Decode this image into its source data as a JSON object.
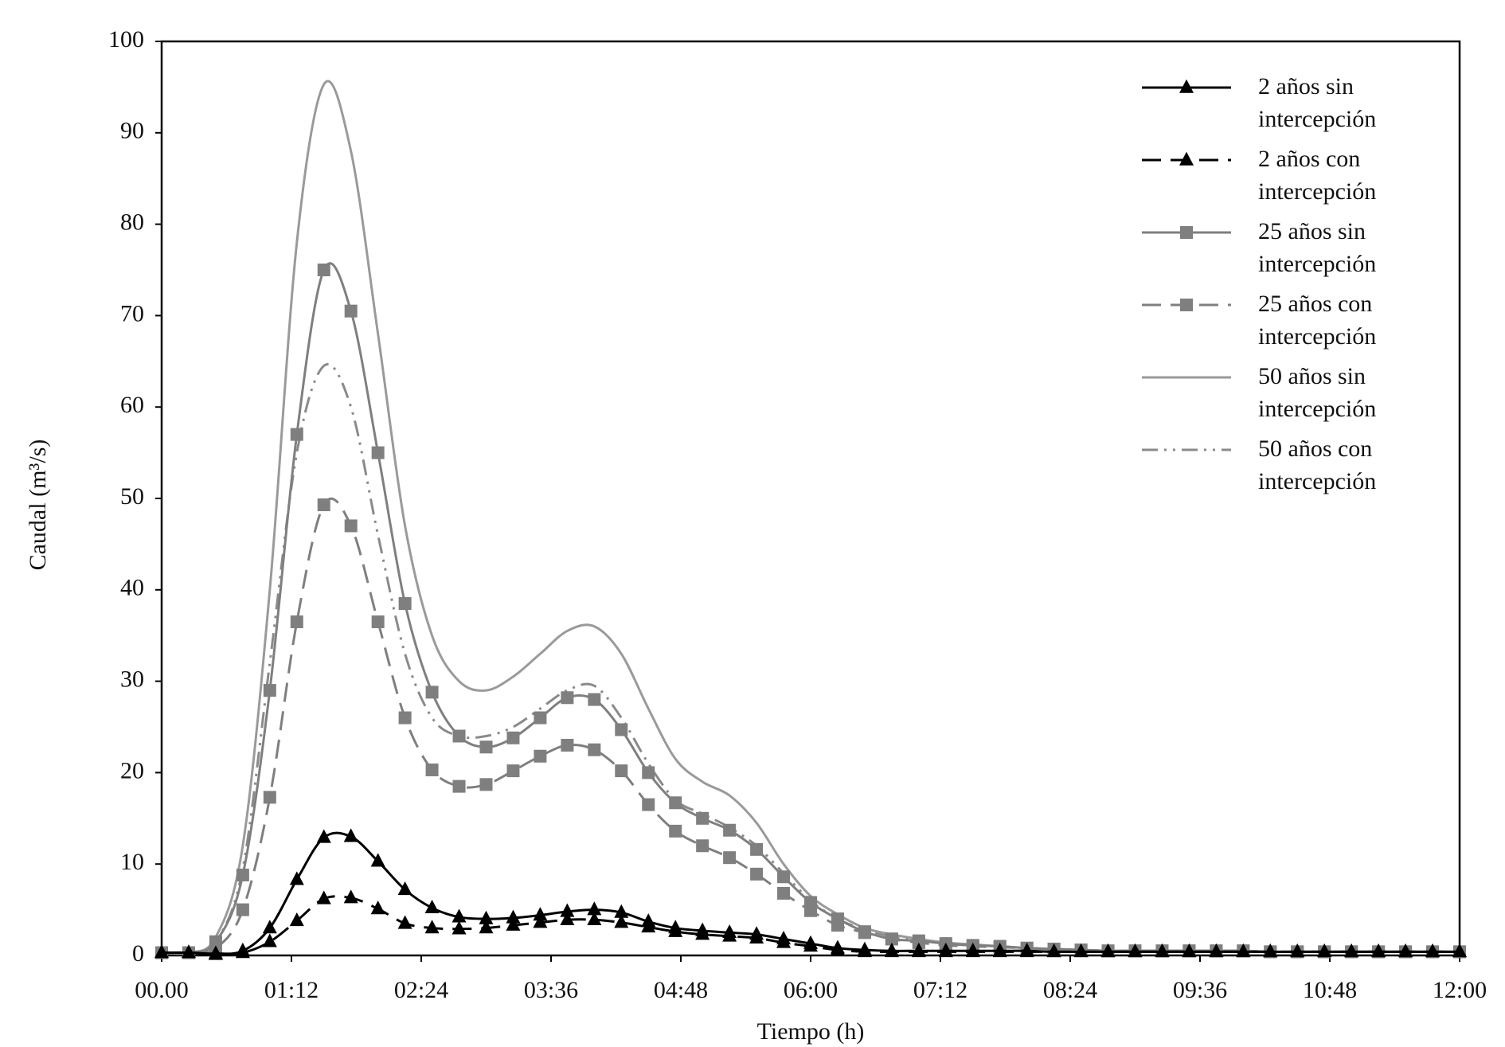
{
  "chart_data": {
    "type": "line",
    "x_label": "Tiempo (h)",
    "y_label": "Caudal (m³/s)",
    "x": [
      0,
      0.25,
      0.5,
      0.75,
      1,
      1.25,
      1.5,
      1.75,
      2,
      2.25,
      2.5,
      2.75,
      3,
      3.25,
      3.5,
      3.75,
      4,
      4.25,
      4.5,
      4.75,
      5,
      5.25,
      5.5,
      5.75,
      6,
      6.25,
      6.5,
      6.75,
      7,
      7.25,
      7.5,
      7.75,
      8,
      8.25,
      8.5,
      8.75,
      9,
      9.25,
      9.5,
      9.75,
      10,
      10.25,
      10.5,
      10.75,
      11,
      11.25,
      11.5,
      11.75,
      12
    ],
    "xlim": [
      0,
      12
    ],
    "xticks": [
      {
        "value": 0,
        "label": "00.00"
      },
      {
        "value": 1.2,
        "label": "01:12"
      },
      {
        "value": 2.4,
        "label": "02:24"
      },
      {
        "value": 3.6,
        "label": "03:36"
      },
      {
        "value": 4.8,
        "label": "04:48"
      },
      {
        "value": 6,
        "label": "06:00"
      },
      {
        "value": 7.2,
        "label": "07:12"
      },
      {
        "value": 8.4,
        "label": "08:24"
      },
      {
        "value": 9.6,
        "label": "09:36"
      },
      {
        "value": 10.8,
        "label": "10:48"
      },
      {
        "value": 12,
        "label": "12:00"
      }
    ],
    "ylim": [
      0,
      100
    ],
    "yticks": [
      0,
      10,
      20,
      30,
      40,
      50,
      60,
      70,
      80,
      90,
      100
    ],
    "grid": false,
    "legend": "upper right",
    "series": [
      {
        "name": "2 años sin intercepción",
        "color": "#000000",
        "line_style": "solid",
        "marker": "triangle",
        "values": [
          0.3,
          0.3,
          0.2,
          0.5,
          3,
          8.3,
          12.9,
          13,
          10.3,
          7.2,
          5.2,
          4.2,
          4,
          4.1,
          4.4,
          4.8,
          5,
          4.7,
          3.7,
          3,
          2.7,
          2.5,
          2.3,
          1.8,
          1.3,
          0.8,
          0.6,
          0.5,
          0.5,
          0.5,
          0.5,
          0.5,
          0.5,
          0.4,
          0.4,
          0.4,
          0.4,
          0.4,
          0.4,
          0.4,
          0.4,
          0.4,
          0.4,
          0.4,
          0.4,
          0.4,
          0.4,
          0.4,
          0.4
        ]
      },
      {
        "name": "2 años con intercepción",
        "color": "#000000",
        "line_style": "dashed",
        "marker": "triangle",
        "values": [
          0.3,
          0.3,
          0.1,
          0.3,
          1.5,
          3.8,
          6.2,
          6.3,
          5.1,
          3.5,
          3,
          2.9,
          3,
          3.3,
          3.6,
          3.9,
          3.9,
          3.6,
          3.1,
          2.6,
          2.3,
          2.1,
          1.9,
          1.4,
          1.0,
          0.6,
          0.4,
          0.4,
          0.4,
          0.4,
          0.4,
          0.4,
          0.4,
          0.4,
          0.4,
          0.4,
          0.4,
          0.4,
          0.4,
          0.4,
          0.4,
          0.4,
          0.4,
          0.4,
          0.4,
          0.4,
          0.4,
          0.4,
          0.4
        ]
      },
      {
        "name": "25 años sin intercepción",
        "color": "#7f7f7f",
        "line_style": "solid",
        "marker": "square",
        "values": [
          0.3,
          0.3,
          1.5,
          8.8,
          29,
          57,
          75,
          70.5,
          55,
          38.5,
          28.8,
          24,
          22.8,
          23.8,
          26,
          28.2,
          28,
          24.7,
          20,
          16.7,
          15,
          13.7,
          11.6,
          8.6,
          5.8,
          4,
          2.6,
          1.8,
          1.6,
          1.3,
          1.1,
          1.0,
          0.8,
          0.7,
          0.6,
          0.5,
          0.5,
          0.5,
          0.5,
          0.5,
          0.5,
          0.4,
          0.4,
          0.4,
          0.4,
          0.4,
          0.4,
          0.4,
          0.4
        ]
      },
      {
        "name": "25 años con intercepción",
        "color": "#7f7f7f",
        "line_style": "dashed",
        "marker": "square",
        "values": [
          0.3,
          0.3,
          0.8,
          5,
          17.3,
          36.5,
          49.3,
          47,
          36.5,
          26,
          20.3,
          18.5,
          18.7,
          20.2,
          21.8,
          23,
          22.5,
          20.2,
          16.5,
          13.6,
          12,
          10.7,
          8.9,
          6.8,
          4.9,
          3.3,
          2.5,
          1.8,
          1.4,
          1.1,
          1.0,
          0.9,
          0.8,
          0.7,
          0.6,
          0.5,
          0.5,
          0.5,
          0.5,
          0.5,
          0.5,
          0.4,
          0.4,
          0.4,
          0.4,
          0.4,
          0.4,
          0.4,
          0.4
        ]
      },
      {
        "name": "50 años sin intercepción",
        "color": "#9a9a9a",
        "line_style": "solid",
        "marker": "none",
        "values": [
          0.3,
          0.3,
          2,
          12,
          40,
          78,
          95.3,
          88,
          68,
          47,
          35,
          30,
          29,
          30.5,
          33,
          35.5,
          36,
          33,
          27,
          21.5,
          19,
          17.5,
          14.5,
          10,
          6.5,
          4.5,
          3,
          2.3,
          1.8,
          1.4,
          1.2,
          1.0,
          0.8,
          0.7,
          0.6,
          0.5,
          0.5,
          0.5,
          0.5,
          0.5,
          0.5,
          0.4,
          0.4,
          0.4,
          0.4,
          0.4,
          0.4,
          0.4,
          0.4
        ]
      },
      {
        "name": "50 años con intercepción",
        "color": "#8a8a8a",
        "line_style": "dash-dot-dot",
        "marker": "none",
        "values": [
          0.3,
          0.3,
          1.5,
          9.5,
          32,
          55,
          64.5,
          60,
          46,
          33,
          26,
          24,
          24,
          25,
          27,
          29,
          29.5,
          26,
          21,
          17,
          15.5,
          14,
          12,
          9,
          6,
          4,
          2.8,
          2.1,
          1.7,
          1.3,
          1.1,
          1.0,
          0.8,
          0.7,
          0.6,
          0.5,
          0.5,
          0.5,
          0.5,
          0.5,
          0.5,
          0.4,
          0.4,
          0.4,
          0.4,
          0.4,
          0.4,
          0.4,
          0.4
        ]
      }
    ]
  }
}
